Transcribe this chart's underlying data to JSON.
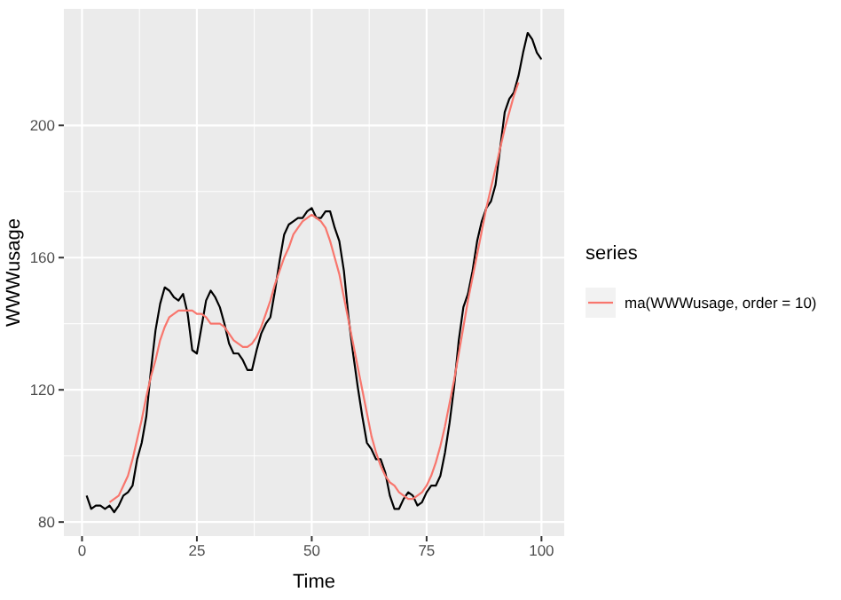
{
  "chart_data": {
    "type": "line",
    "xlabel": "Time",
    "ylabel": "WWWusage",
    "legend_title": "series",
    "legend": "right",
    "grid": true,
    "xlim": [
      -3.95,
      104.95
    ],
    "xticks": [
      0,
      25,
      50,
      75,
      100
    ],
    "ylim": [
      75.75,
      235.25
    ],
    "yticks": [
      80,
      120,
      160,
      200
    ],
    "series": [
      {
        "color": "#000000",
        "x": [
          1,
          2,
          3,
          4,
          5,
          6,
          7,
          8,
          9,
          10,
          11,
          12,
          13,
          14,
          15,
          16,
          17,
          18,
          19,
          20,
          21,
          22,
          23,
          24,
          25,
          26,
          27,
          28,
          29,
          30,
          31,
          32,
          33,
          34,
          35,
          36,
          37,
          38,
          39,
          40,
          41,
          42,
          43,
          44,
          45,
          46,
          47,
          48,
          49,
          50,
          51,
          52,
          53,
          54,
          55,
          56,
          57,
          58,
          59,
          60,
          61,
          62,
          63,
          64,
          65,
          66,
          67,
          68,
          69,
          70,
          71,
          72,
          73,
          74,
          75,
          76,
          77,
          78,
          79,
          80,
          81,
          82,
          83,
          84,
          85,
          86,
          87,
          88,
          89,
          90,
          91,
          92,
          93,
          94,
          95,
          96,
          97,
          98,
          99,
          100
        ],
        "values": [
          88,
          84,
          85,
          85,
          84,
          85,
          83,
          85,
          88,
          89,
          91,
          99,
          104,
          112,
          126,
          138,
          146,
          151,
          150,
          148,
          147,
          149,
          143,
          132,
          131,
          139,
          147,
          150,
          148,
          145,
          140,
          134,
          131,
          131,
          129,
          126,
          126,
          132,
          137,
          140,
          142,
          150,
          159,
          167,
          170,
          171,
          172,
          172,
          174,
          175,
          172,
          172,
          174,
          174,
          169,
          165,
          156,
          142,
          131,
          121,
          112,
          104,
          102,
          99,
          99,
          95,
          88,
          84,
          84,
          87,
          89,
          88,
          85,
          86,
          89,
          91,
          91,
          94,
          101,
          110,
          121,
          135,
          145,
          149,
          156,
          165,
          171,
          175,
          177,
          182,
          193,
          204,
          208,
          210,
          215,
          222,
          228,
          226,
          222,
          220
        ]
      },
      {
        "name": "ma(WWWusage, order = 10)",
        "color": "#f8766d",
        "x": [
          6,
          7,
          8,
          9,
          10,
          11,
          12,
          13,
          14,
          15,
          16,
          17,
          18,
          19,
          20,
          21,
          22,
          23,
          24,
          25,
          26,
          27,
          28,
          29,
          30,
          31,
          32,
          33,
          34,
          35,
          36,
          37,
          38,
          39,
          40,
          41,
          42,
          43,
          44,
          45,
          46,
          47,
          48,
          49,
          50,
          51,
          52,
          53,
          54,
          55,
          56,
          57,
          58,
          59,
          60,
          61,
          62,
          63,
          64,
          65,
          66,
          67,
          68,
          69,
          70,
          71,
          72,
          73,
          74,
          75,
          76,
          77,
          78,
          79,
          80,
          81,
          82,
          83,
          84,
          85,
          86,
          87,
          88,
          89,
          90,
          91,
          92,
          93,
          94,
          95
        ],
        "values": [
          86,
          87,
          88,
          91,
          94,
          99,
          105,
          111,
          118,
          124,
          129,
          135,
          139,
          142,
          143,
          144,
          144,
          144,
          144,
          143,
          143,
          142,
          140,
          140,
          140,
          139,
          137,
          135,
          134,
          133,
          133,
          134,
          136,
          139,
          143,
          147,
          152,
          156,
          160,
          163,
          167,
          169,
          171,
          172,
          173,
          172,
          171,
          169,
          165,
          160,
          155,
          148,
          141,
          134,
          127,
          120,
          113,
          106,
          101,
          97,
          94,
          92,
          91,
          89,
          88,
          87,
          87,
          88,
          89,
          91,
          94,
          98,
          103,
          109,
          116,
          123,
          131,
          139,
          147,
          154,
          161,
          168,
          175,
          181,
          187,
          193,
          199,
          204,
          209,
          213
        ]
      }
    ]
  }
}
